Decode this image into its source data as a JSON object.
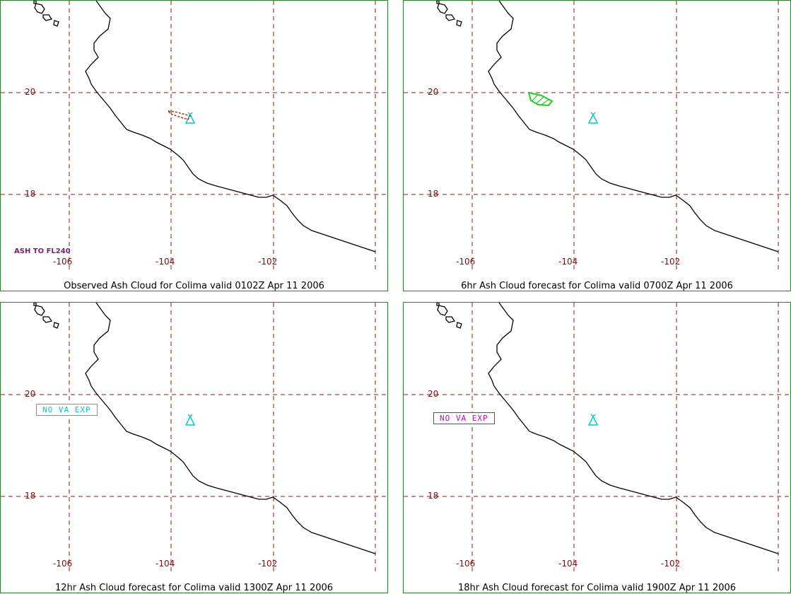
{
  "colors": {
    "grid": "#8b1a1a",
    "coast": "#000000",
    "frame": "#2f7d2f",
    "volcano": "#00cccc",
    "observed_ash": "#8b4513",
    "forecast_ash": "#22cc22",
    "no_va_box_panel3": "#00cccc",
    "no_va_box_panel4": "#cc00cc"
  },
  "axes": {
    "lon_ticks": [
      "-106",
      "-104",
      "-102"
    ],
    "lat_ticks": [
      "20",
      "18"
    ]
  },
  "panels": [
    {
      "caption": "Observed Ash Cloud for Colima valid 0102Z Apr 11 2006",
      "ash": "observed",
      "note": "ASH TO FL240",
      "box": ""
    },
    {
      "caption": "6hr Ash Cloud forecast for Colima valid 0700Z Apr 11 2006",
      "ash": "forecast",
      "note": "",
      "box": ""
    },
    {
      "caption": "12hr Ash Cloud forecast for Colima valid 1300Z Apr 11 2006",
      "ash": "none",
      "note": "",
      "box": "NO VA EXP"
    },
    {
      "caption": "18hr Ash Cloud forecast for Colima valid 1900Z Apr 11 2006",
      "ash": "none",
      "note": "",
      "box": "NO VA EXP"
    }
  ]
}
